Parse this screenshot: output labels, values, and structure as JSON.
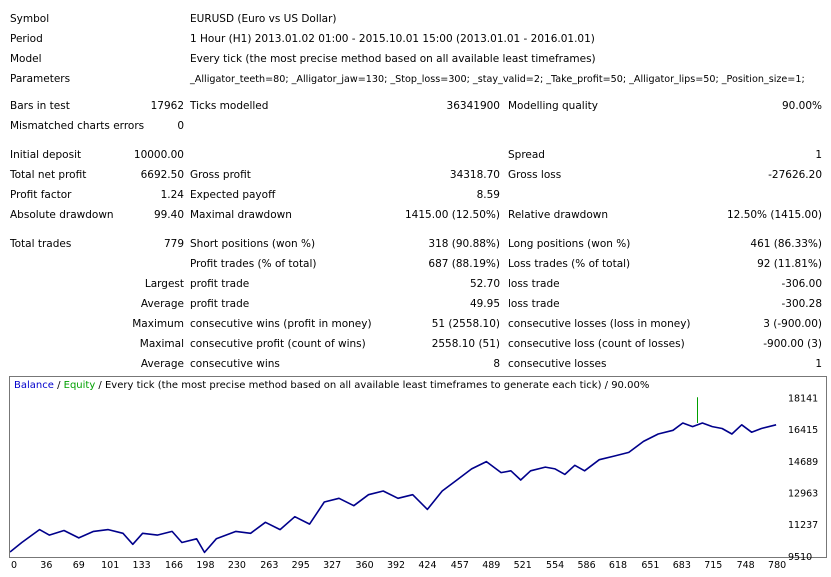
{
  "header": {
    "symbol_label": "Symbol",
    "symbol_value": "EURUSD (Euro vs US Dollar)",
    "period_label": "Period",
    "period_value": "1 Hour (H1) 2013.01.02 01:00 - 2015.10.01 15:00 (2013.01.01 - 2016.01.01)",
    "model_label": "Model",
    "model_value": "Every tick (the most precise method based on all available least timeframes)",
    "parameters_label": "Parameters",
    "parameters_value": "_Alligator_teeth=80; _Alligator_jaw=130; _Stop_loss=300; _stay_valid=2; _Take_profit=50; _Alligator_lips=50; _Position_size=1;"
  },
  "stats": {
    "bars_label": "Bars in test",
    "bars_value": "17962",
    "ticks_label": "Ticks modelled",
    "ticks_value": "36341900",
    "quality_label": "Modelling quality",
    "quality_value": "90.00%",
    "mismatch_label": "Mismatched charts errors",
    "mismatch_value": "0",
    "deposit_label": "Initial deposit",
    "deposit_value": "10000.00",
    "spread_label": "Spread",
    "spread_value": "1",
    "net_profit_label": "Total net profit",
    "net_profit_value": "6692.50",
    "gross_profit_label": "Gross profit",
    "gross_profit_value": "34318.70",
    "gross_loss_label": "Gross loss",
    "gross_loss_value": "-27626.20",
    "profit_factor_label": "Profit factor",
    "profit_factor_value": "1.24",
    "expected_payoff_label": "Expected payoff",
    "expected_payoff_value": "8.59",
    "abs_dd_label": "Absolute drawdown",
    "abs_dd_value": "99.40",
    "max_dd_label": "Maximal drawdown",
    "max_dd_value": "1415.00 (12.50%)",
    "rel_dd_label": "Relative drawdown",
    "rel_dd_value": "12.50% (1415.00)",
    "total_trades_label": "Total trades",
    "total_trades_value": "779",
    "short_label": "Short positions (won %)",
    "short_value": "318 (90.88%)",
    "long_label": "Long positions (won %)",
    "long_value": "461 (86.33%)",
    "profit_trades_label": "Profit trades (% of total)",
    "profit_trades_value": "687 (88.19%)",
    "loss_trades_label": "Loss trades (% of total)",
    "loss_trades_value": "92 (11.81%)",
    "largest_label": "Largest",
    "largest_pt_label": "profit trade",
    "largest_pt_value": "52.70",
    "largest_lt_label": "loss trade",
    "largest_lt_value": "-306.00",
    "average_label": "Average",
    "average_pt_label": "profit trade",
    "average_pt_value": "49.95",
    "average_lt_label": "loss trade",
    "average_lt_value": "-300.28",
    "maximum_label": "Maximum",
    "max_cw_label": "consecutive wins (profit in money)",
    "max_cw_value": "51 (2558.10)",
    "max_cl_label": "consecutive losses (loss in money)",
    "max_cl_value": "3 (-900.00)",
    "maximal_label": "Maximal",
    "maximal_cp_label": "consecutive profit (count of wins)",
    "maximal_cp_value": "2558.10 (51)",
    "maximal_cl_label": "consecutive loss (count of losses)",
    "maximal_cl_value": "-900.00 (3)",
    "avg2_label": "Average",
    "avg_cw_label": "consecutive wins",
    "avg_cw_value": "8",
    "avg_cl_label": "consecutive losses",
    "avg_cl_value": "1"
  },
  "chart_legend": {
    "balance": "Balance",
    "sep1": " / ",
    "equity": "Equity",
    "rest": " / Every tick (the most precise method based on all available least timeframes to generate each tick) / 90.00%"
  },
  "colors": {
    "balance": "#00008B",
    "equity": "#00A000",
    "legend_balance": "#0000CC",
    "legend_equity": "#00A000"
  },
  "chart_data": {
    "type": "line",
    "title": "",
    "xlabel": "",
    "ylabel": "",
    "x_ticks": [
      0,
      36,
      69,
      101,
      133,
      166,
      198,
      230,
      263,
      295,
      327,
      360,
      392,
      424,
      457,
      489,
      521,
      554,
      586,
      618,
      651,
      683,
      715,
      748,
      780
    ],
    "y_ticks": [
      9510,
      11237,
      12963,
      14689,
      16415,
      18141
    ],
    "xlim": [
      0,
      786
    ],
    "ylim": [
      9510,
      19300
    ],
    "series": [
      {
        "role": "balance",
        "x": [
          0,
          12,
          30,
          40,
          55,
          70,
          85,
          100,
          115,
          125,
          135,
          150,
          165,
          175,
          190,
          198,
          210,
          230,
          245,
          260,
          275,
          290,
          305,
          320,
          335,
          350,
          365,
          380,
          395,
          410,
          425,
          440,
          455,
          470,
          485,
          500,
          510,
          520,
          530,
          545,
          555,
          565,
          575,
          585,
          600,
          615,
          630,
          645,
          660,
          675,
          685,
          695,
          705,
          715,
          725,
          735,
          745,
          755,
          765,
          780
        ],
        "y": [
          9780,
          10300,
          11000,
          10700,
          10950,
          10550,
          10900,
          11000,
          10800,
          10200,
          10800,
          10700,
          10900,
          10300,
          10500,
          9760,
          10500,
          10900,
          10800,
          11400,
          11000,
          11700,
          11300,
          12500,
          12700,
          12300,
          12900,
          13100,
          12700,
          12900,
          12100,
          13100,
          13700,
          14300,
          14700,
          14100,
          14200,
          13700,
          14200,
          14400,
          14300,
          14000,
          14500,
          14200,
          14800,
          15000,
          15200,
          15800,
          16200,
          16400,
          16800,
          16600,
          16800,
          16600,
          16500,
          16200,
          16700,
          16300,
          16500,
          16700
        ]
      },
      {
        "role": "equity",
        "x": [
          700,
          700
        ],
        "y": [
          16800,
          18200
        ]
      }
    ]
  }
}
